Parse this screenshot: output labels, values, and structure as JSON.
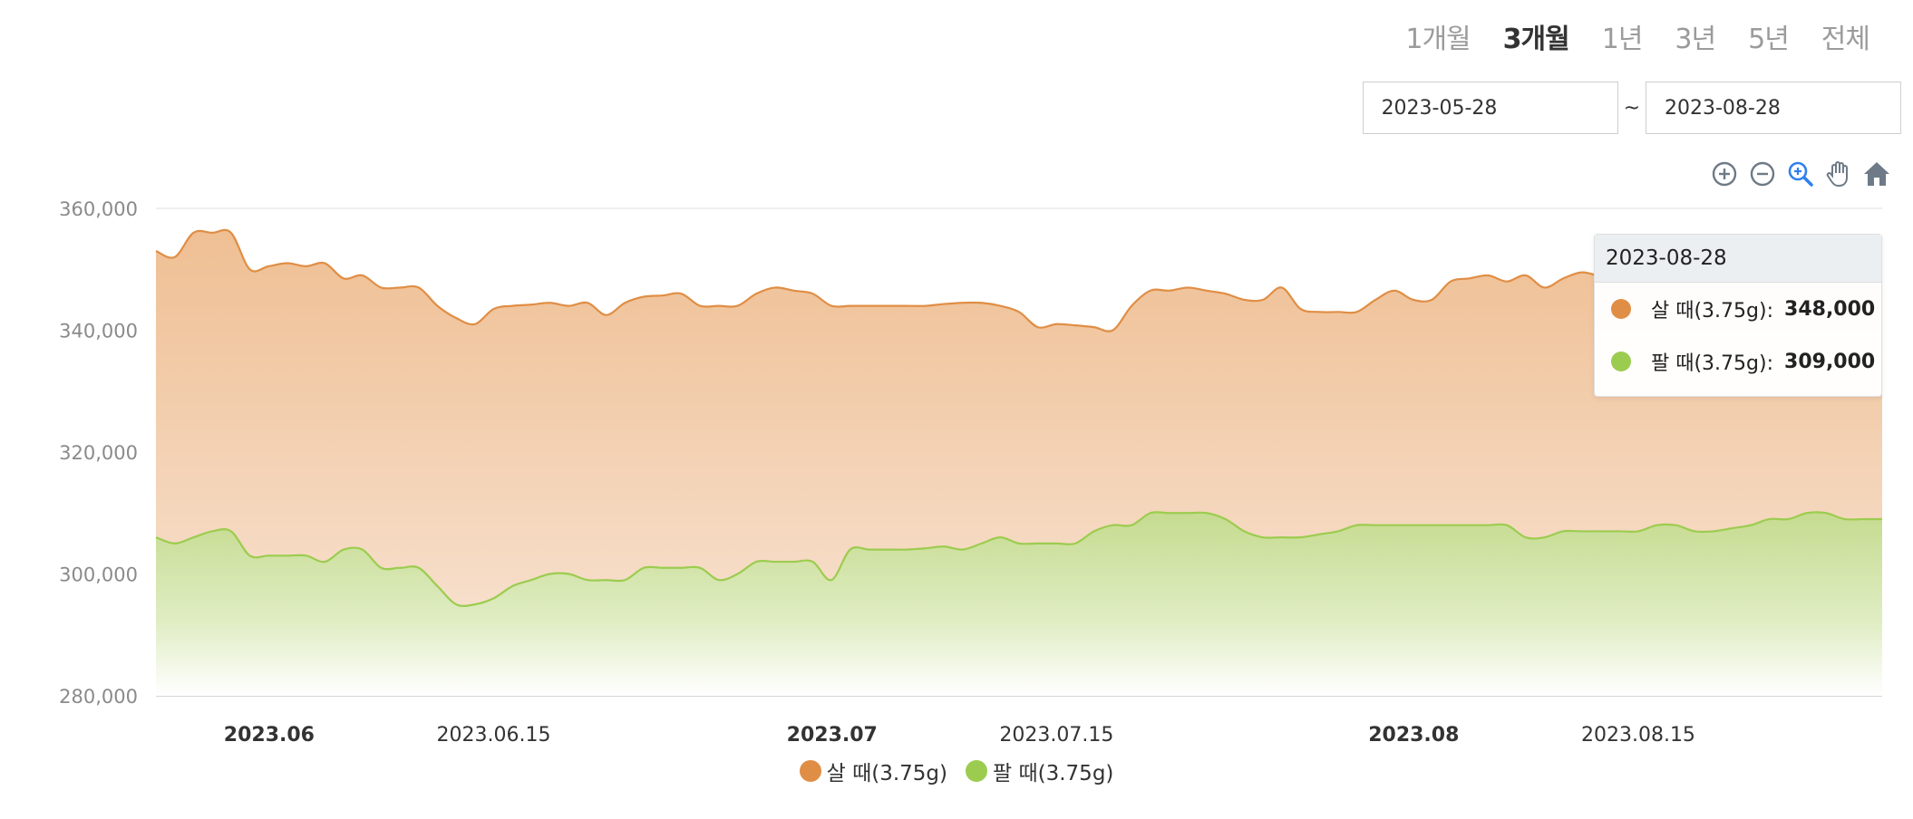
{
  "range_tabs": [
    {
      "label": "1개월",
      "active": false
    },
    {
      "label": "3개월",
      "active": true
    },
    {
      "label": "1년",
      "active": false
    },
    {
      "label": "3년",
      "active": false
    },
    {
      "label": "5년",
      "active": false
    },
    {
      "label": "전체",
      "active": false
    }
  ],
  "date_range": {
    "start": "2023-05-28",
    "separator": "~",
    "end": "2023-08-28"
  },
  "toolbar_icons": [
    "zoom-in-icon",
    "zoom-out-icon",
    "selection-zoom-icon",
    "pan-icon",
    "reset-home-icon"
  ],
  "colors": {
    "buy": "#e08e45",
    "buy_fill": "#f0c59e",
    "sell": "#9ccc4f",
    "sell_fill": "#c8dd94",
    "active_tool": "#2f80ed",
    "tool": "#6e7a87"
  },
  "tooltip": {
    "date": "2023-08-28",
    "rows": [
      {
        "label": "살 때(3.75g):",
        "value": "348,000"
      },
      {
        "label": "팔 때(3.75g):",
        "value": "309,000"
      }
    ]
  },
  "chart_data": {
    "type": "area",
    "x_range": [
      "2023-05-28",
      "2023-08-28"
    ],
    "ylim": [
      280000,
      360000
    ],
    "y_ticks": [
      280000,
      300000,
      320000,
      340000,
      360000
    ],
    "y_tick_labels": [
      "280,000",
      "300,000",
      "320,000",
      "340,000",
      "360,000"
    ],
    "x_ticks": [
      {
        "date": "2023-06-01",
        "label": "2023.06",
        "bold": true
      },
      {
        "date": "2023-06-15",
        "label": "2023.06.15",
        "bold": false
      },
      {
        "date": "2023-07-01",
        "label": "2023.07",
        "bold": true
      },
      {
        "date": "2023-07-15",
        "label": "2023.07.15",
        "bold": false
      },
      {
        "date": "2023-08-01",
        "label": "2023.08",
        "bold": true
      },
      {
        "date": "2023-08-15",
        "label": "2023.08.15",
        "bold": false
      }
    ],
    "grid": true,
    "legend": "bottom",
    "series": [
      {
        "name": "살 때(3.75g)",
        "points": [
          [
            "2023-05-28",
            353000
          ],
          [
            "2023-05-29",
            352000
          ],
          [
            "2023-05-30",
            356000
          ],
          [
            "2023-05-31",
            356000
          ],
          [
            "2023-06-01",
            356000
          ],
          [
            "2023-06-02",
            350000
          ],
          [
            "2023-06-03",
            350500
          ],
          [
            "2023-06-04",
            351000
          ],
          [
            "2023-06-05",
            350500
          ],
          [
            "2023-06-06",
            351000
          ],
          [
            "2023-06-07",
            348500
          ],
          [
            "2023-06-08",
            349000
          ],
          [
            "2023-06-09",
            347000
          ],
          [
            "2023-06-10",
            347000
          ],
          [
            "2023-06-11",
            347000
          ],
          [
            "2023-06-12",
            344000
          ],
          [
            "2023-06-13",
            342000
          ],
          [
            "2023-06-14",
            341000
          ],
          [
            "2023-06-15",
            343500
          ],
          [
            "2023-06-16",
            344000
          ],
          [
            "2023-06-17",
            344200
          ],
          [
            "2023-06-18",
            344500
          ],
          [
            "2023-06-19",
            344000
          ],
          [
            "2023-06-20",
            344500
          ],
          [
            "2023-06-21",
            342500
          ],
          [
            "2023-06-22",
            344500
          ],
          [
            "2023-06-23",
            345500
          ],
          [
            "2023-06-24",
            345700
          ],
          [
            "2023-06-25",
            346000
          ],
          [
            "2023-06-26",
            344000
          ],
          [
            "2023-06-27",
            344000
          ],
          [
            "2023-06-28",
            344000
          ],
          [
            "2023-06-29",
            346000
          ],
          [
            "2023-06-30",
            347000
          ],
          [
            "2023-07-01",
            346500
          ],
          [
            "2023-07-02",
            346000
          ],
          [
            "2023-07-03",
            344000
          ],
          [
            "2023-07-04",
            344000
          ],
          [
            "2023-07-05",
            344000
          ],
          [
            "2023-07-06",
            344000
          ],
          [
            "2023-07-07",
            344000
          ],
          [
            "2023-07-08",
            344000
          ],
          [
            "2023-07-09",
            344300
          ],
          [
            "2023-07-10",
            344500
          ],
          [
            "2023-07-11",
            344500
          ],
          [
            "2023-07-12",
            344000
          ],
          [
            "2023-07-13",
            343000
          ],
          [
            "2023-07-14",
            340500
          ],
          [
            "2023-07-15",
            341000
          ],
          [
            "2023-07-16",
            340800
          ],
          [
            "2023-07-17",
            340500
          ],
          [
            "2023-07-18",
            340000
          ],
          [
            "2023-07-19",
            344000
          ],
          [
            "2023-07-20",
            346500
          ],
          [
            "2023-07-21",
            346500
          ],
          [
            "2023-07-22",
            347000
          ],
          [
            "2023-07-23",
            346500
          ],
          [
            "2023-07-24",
            346000
          ],
          [
            "2023-07-25",
            345000
          ],
          [
            "2023-07-26",
            345000
          ],
          [
            "2023-07-27",
            347000
          ],
          [
            "2023-07-28",
            343500
          ],
          [
            "2023-07-29",
            343000
          ],
          [
            "2023-07-30",
            343000
          ],
          [
            "2023-07-31",
            343000
          ],
          [
            "2023-08-01",
            345000
          ],
          [
            "2023-08-02",
            346500
          ],
          [
            "2023-08-03",
            345000
          ],
          [
            "2023-08-04",
            345000
          ],
          [
            "2023-08-05",
            348000
          ],
          [
            "2023-08-06",
            348500
          ],
          [
            "2023-08-07",
            349000
          ],
          [
            "2023-08-08",
            348000
          ],
          [
            "2023-08-09",
            349000
          ],
          [
            "2023-08-10",
            347000
          ],
          [
            "2023-08-11",
            348500
          ],
          [
            "2023-08-12",
            349500
          ],
          [
            "2023-08-13",
            348800
          ],
          [
            "2023-08-14",
            348000
          ],
          [
            "2023-08-15",
            348000
          ],
          [
            "2023-08-16",
            348000
          ],
          [
            "2023-08-17",
            348000
          ],
          [
            "2023-08-18",
            348000
          ],
          [
            "2023-08-19",
            348000
          ],
          [
            "2023-08-20",
            348000
          ],
          [
            "2023-08-21",
            348000
          ],
          [
            "2023-08-22",
            348000
          ],
          [
            "2023-08-23",
            348000
          ],
          [
            "2023-08-24",
            348000
          ],
          [
            "2023-08-25",
            348000
          ],
          [
            "2023-08-26",
            348000
          ],
          [
            "2023-08-27",
            348000
          ],
          [
            "2023-08-28",
            348000
          ]
        ]
      },
      {
        "name": "팔 때(3.75g)",
        "points": [
          [
            "2023-05-28",
            306000
          ],
          [
            "2023-05-29",
            305000
          ],
          [
            "2023-05-30",
            306000
          ],
          [
            "2023-05-31",
            307000
          ],
          [
            "2023-06-01",
            307000
          ],
          [
            "2023-06-02",
            303000
          ],
          [
            "2023-06-03",
            303000
          ],
          [
            "2023-06-04",
            303000
          ],
          [
            "2023-06-05",
            303000
          ],
          [
            "2023-06-06",
            302000
          ],
          [
            "2023-06-07",
            304000
          ],
          [
            "2023-06-08",
            304000
          ],
          [
            "2023-06-09",
            301000
          ],
          [
            "2023-06-10",
            301000
          ],
          [
            "2023-06-11",
            301000
          ],
          [
            "2023-06-12",
            298000
          ],
          [
            "2023-06-13",
            295000
          ],
          [
            "2023-06-14",
            295000
          ],
          [
            "2023-06-15",
            296000
          ],
          [
            "2023-06-16",
            298000
          ],
          [
            "2023-06-17",
            299000
          ],
          [
            "2023-06-18",
            300000
          ],
          [
            "2023-06-19",
            300000
          ],
          [
            "2023-06-20",
            299000
          ],
          [
            "2023-06-21",
            299000
          ],
          [
            "2023-06-22",
            299000
          ],
          [
            "2023-06-23",
            301000
          ],
          [
            "2023-06-24",
            301000
          ],
          [
            "2023-06-25",
            301000
          ],
          [
            "2023-06-26",
            301000
          ],
          [
            "2023-06-27",
            299000
          ],
          [
            "2023-06-28",
            300000
          ],
          [
            "2023-06-29",
            302000
          ],
          [
            "2023-06-30",
            302000
          ],
          [
            "2023-07-01",
            302000
          ],
          [
            "2023-07-02",
            302000
          ],
          [
            "2023-07-03",
            299000
          ],
          [
            "2023-07-04",
            304000
          ],
          [
            "2023-07-05",
            304000
          ],
          [
            "2023-07-06",
            304000
          ],
          [
            "2023-07-07",
            304000
          ],
          [
            "2023-07-08",
            304200
          ],
          [
            "2023-07-09",
            304500
          ],
          [
            "2023-07-10",
            304000
          ],
          [
            "2023-07-11",
            305000
          ],
          [
            "2023-07-12",
            306000
          ],
          [
            "2023-07-13",
            305000
          ],
          [
            "2023-07-14",
            305000
          ],
          [
            "2023-07-15",
            305000
          ],
          [
            "2023-07-16",
            305000
          ],
          [
            "2023-07-17",
            307000
          ],
          [
            "2023-07-18",
            308000
          ],
          [
            "2023-07-19",
            308000
          ],
          [
            "2023-07-20",
            310000
          ],
          [
            "2023-07-21",
            310000
          ],
          [
            "2023-07-22",
            310000
          ],
          [
            "2023-07-23",
            310000
          ],
          [
            "2023-07-24",
            309000
          ],
          [
            "2023-07-25",
            307000
          ],
          [
            "2023-07-26",
            306000
          ],
          [
            "2023-07-27",
            306000
          ],
          [
            "2023-07-28",
            306000
          ],
          [
            "2023-07-29",
            306500
          ],
          [
            "2023-07-30",
            307000
          ],
          [
            "2023-07-31",
            308000
          ],
          [
            "2023-08-01",
            308000
          ],
          [
            "2023-08-02",
            308000
          ],
          [
            "2023-08-03",
            308000
          ],
          [
            "2023-08-04",
            308000
          ],
          [
            "2023-08-05",
            308000
          ],
          [
            "2023-08-06",
            308000
          ],
          [
            "2023-08-07",
            308000
          ],
          [
            "2023-08-08",
            308000
          ],
          [
            "2023-08-09",
            306000
          ],
          [
            "2023-08-10",
            306000
          ],
          [
            "2023-08-11",
            307000
          ],
          [
            "2023-08-12",
            307000
          ],
          [
            "2023-08-13",
            307000
          ],
          [
            "2023-08-14",
            307000
          ],
          [
            "2023-08-15",
            307000
          ],
          [
            "2023-08-16",
            308000
          ],
          [
            "2023-08-17",
            308000
          ],
          [
            "2023-08-18",
            307000
          ],
          [
            "2023-08-19",
            307000
          ],
          [
            "2023-08-20",
            307500
          ],
          [
            "2023-08-21",
            308000
          ],
          [
            "2023-08-22",
            309000
          ],
          [
            "2023-08-23",
            309000
          ],
          [
            "2023-08-24",
            310000
          ],
          [
            "2023-08-25",
            310000
          ],
          [
            "2023-08-26",
            309000
          ],
          [
            "2023-08-27",
            309000
          ],
          [
            "2023-08-28",
            309000
          ]
        ]
      }
    ]
  }
}
